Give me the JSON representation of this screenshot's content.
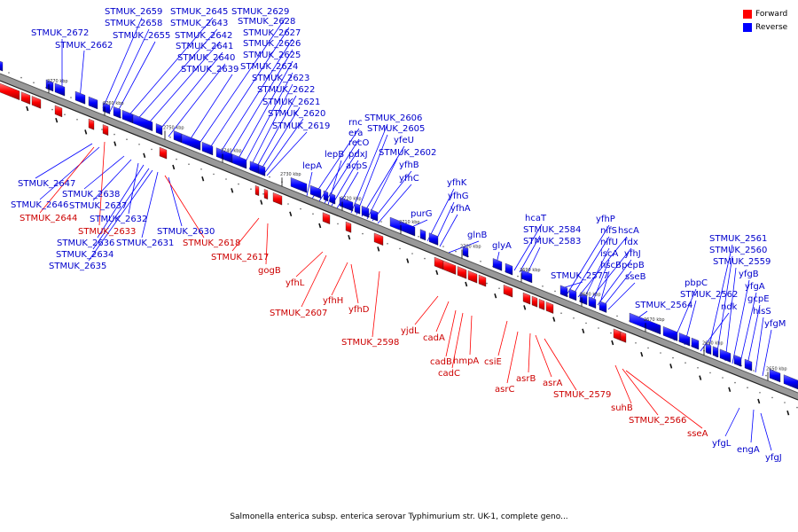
{
  "legend": {
    "forward": {
      "label": "Forward",
      "color": "#ff0000"
    },
    "reverse": {
      "label": "Reverse",
      "color": "#0000ff"
    }
  },
  "caption": "Salmonella enterica subsp. enterica serovar Typhimurium str. UK-1, complete geno...",
  "backbone": {
    "fill": "#999999",
    "edge": "#333333"
  },
  "ticks": [
    "2770 kbp",
    "2760 kbp",
    "2750 kbp",
    "2740 kbp",
    "2730 kbp",
    "2720 kbp",
    "2710 kbp",
    "2700 kbp",
    "2690 kbp",
    "2680 kbp",
    "2670 kbp",
    "2660 kbp",
    "2650 kbp"
  ],
  "genes_reverse": [
    "STMUK_2672",
    "STMUK_2662",
    "STMUK_2659",
    "STMUK_2658",
    "STMUK_2655",
    "STMUK_2645",
    "STMUK_2643",
    "STMUK_2642",
    "STMUK_2641",
    "STMUK_2640",
    "STMUK_2639",
    "STMUK_2629",
    "STMUK_2628",
    "STMUK_2627",
    "STMUK_2626",
    "STMUK_2625",
    "STMUK_2624",
    "STMUK_2623",
    "STMUK_2622",
    "STMUK_2621",
    "STMUK_2620",
    "STMUK_2619",
    "lepA",
    "rnc",
    "era",
    "recO",
    "lepB",
    "pdxJ",
    "acpS",
    "STMUK_2606",
    "STMUK_2605",
    "yfeU",
    "STMUK_2602",
    "yfhB",
    "yfhC",
    "purG",
    "yfhK",
    "yfhG",
    "yfhA",
    "glnB",
    "glyA",
    "hcaT",
    "STMUK_2584",
    "STMUK_2583",
    "STMUK_2577",
    "yfhP",
    "nifS",
    "hscA",
    "nifU",
    "fdx",
    "iscA",
    "yfhJ",
    "hscB",
    "pepB",
    "sseB",
    "STMUK_2564",
    "pbpC",
    "STMUK_2562",
    "ndk",
    "STMUK_2561",
    "STMUK_2560",
    "STMUK_2559",
    "yfgB",
    "yfgA",
    "gcpE",
    "hisS",
    "yfgM",
    "STMUK_2647",
    "STMUK_2646",
    "STMUK_2638",
    "STMUK_2637",
    "STMUK_2632",
    "STMUK_2636",
    "STMUK_2634",
    "STMUK_2635",
    "STMUK_2631",
    "STMUK_2630",
    "yfgL",
    "engA",
    "yfgJ"
  ],
  "genes_forward": [
    "STMUK_2644",
    "STMUK_2633",
    "STMUK_2618",
    "STMUK_2617",
    "gogB",
    "yfhL",
    "STMUK_2607",
    "yfhH",
    "yfhD",
    "STMUK_2598",
    "yjdL",
    "cadA",
    "cadB",
    "cadC",
    "hmpA",
    "csiE",
    "asrC",
    "asrB",
    "asrA",
    "STMUK_2579",
    "suhB",
    "STMUK_2566",
    "sseA"
  ]
}
